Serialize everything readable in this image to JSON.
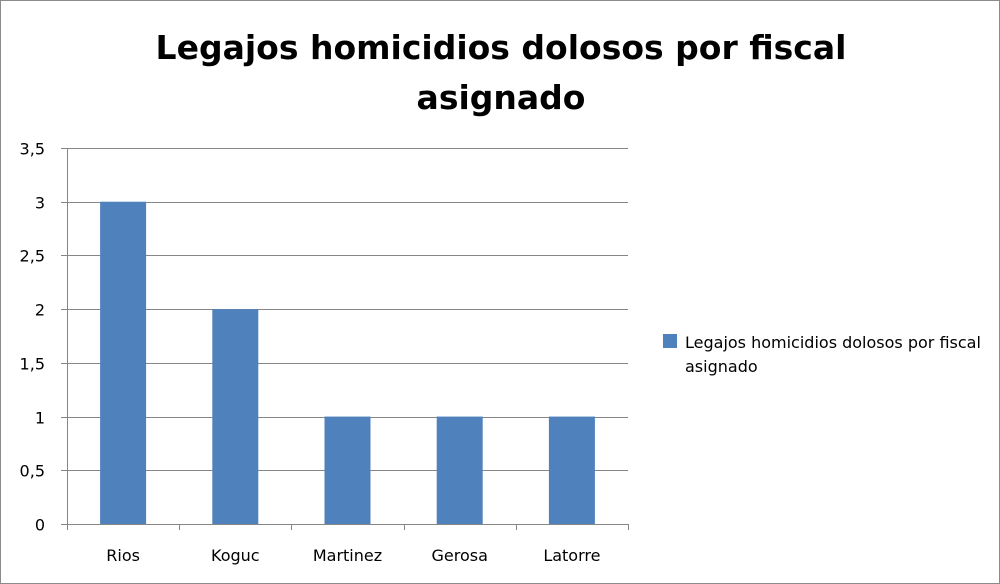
{
  "chart_data": {
    "type": "bar",
    "title": "Legajos homicidios dolosos por fiscal asignado",
    "categories": [
      "Rios",
      "Koguc",
      "Martinez",
      "Gerosa",
      "Latorre"
    ],
    "series": [
      {
        "name": "Legajos homicidios dolosos por fiscal asignado",
        "values": [
          3,
          2,
          1,
          1,
          1
        ],
        "color": "#4f81bd"
      }
    ],
    "ylim": [
      0,
      3.5
    ],
    "yticks": [
      0,
      0.5,
      1,
      1.5,
      2,
      2.5,
      3,
      3.5
    ],
    "ytick_labels": [
      "0",
      "0,5",
      "1",
      "1,5",
      "2",
      "2,5",
      "3",
      "3,5"
    ],
    "xlabel": "",
    "ylabel": "",
    "grid": true,
    "legend_position": "right"
  }
}
